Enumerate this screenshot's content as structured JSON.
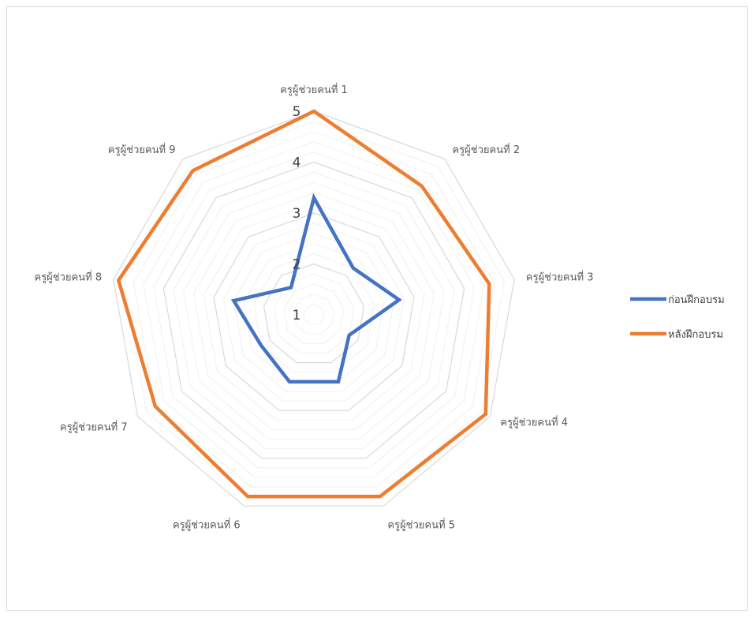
{
  "chart_data": {
    "type": "radar",
    "categories": [
      "ครูผู้ช่วยคนที่ 1",
      "ครูผู้ช่วยคนที่ 2",
      "ครูผู้ช่วยคนที่ 3",
      "ครูผู้ช่วยคนที่ 4",
      "ครูผู้ช่วยคนที่ 5",
      "ครูผู้ช่วยคนที่ 6",
      "ครูผู้ช่วยคนที่ 7",
      "ครูผู้ช่วยคนที่ 8",
      "ครูผู้ช่วยคนที่ 9"
    ],
    "series": [
      {
        "name": "ก่อนฝึกอบรม",
        "color": "#4472C4",
        "values": [
          3.3,
          2.2,
          2.7,
          1.8,
          2.4,
          2.4,
          2.2,
          2.6,
          1.7
        ]
      },
      {
        "name": "หลังฝึกอบรม",
        "color": "#ED7D31",
        "values": [
          5,
          4.3,
          4.5,
          4.9,
          4.8,
          4.8,
          4.6,
          4.9,
          4.7
        ]
      }
    ],
    "rlim": [
      1,
      5
    ],
    "ticks": [
      "1",
      "2",
      "3",
      "4",
      "5"
    ],
    "grid": true,
    "legend_position": "right",
    "gridline_color": "#d9d9d9"
  }
}
